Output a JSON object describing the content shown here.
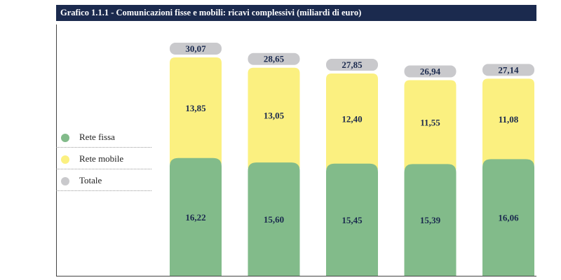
{
  "header": {
    "title": "Grafico 1.1.1 - Comunicazioni fisse e mobili: ricavi complessivi (miliardi di euro)"
  },
  "legend": [
    {
      "label": "Rete fissa",
      "color": "#82bb8a"
    },
    {
      "label": "Rete mobile",
      "color": "#fbf080"
    },
    {
      "label": "Totale",
      "color": "#c9c9cc"
    }
  ],
  "chart_data": {
    "type": "bar",
    "stacked": true,
    "title": "Grafico 1.1.1 - Comunicazioni fisse e mobili: ricavi complessivi (miliardi di euro)",
    "categories": [
      "",
      "",
      "",
      "",
      ""
    ],
    "series": [
      {
        "name": "Rete fissa",
        "color": "#82bb8a",
        "values": [
          16.22,
          15.6,
          15.45,
          15.39,
          16.06
        ],
        "labels": [
          "16,22",
          "15,60",
          "15,45",
          "15,39",
          "16,06"
        ]
      },
      {
        "name": "Rete mobile",
        "color": "#fbf080",
        "values": [
          13.85,
          13.05,
          12.4,
          11.55,
          11.08
        ],
        "labels": [
          "13,85",
          "13,05",
          "12,40",
          "11,55",
          "11,08"
        ]
      }
    ],
    "totals": {
      "name": "Totale",
      "color": "#c9c9cc",
      "values": [
        30.07,
        28.65,
        27.85,
        26.94,
        27.14
      ],
      "labels": [
        "30,07",
        "28,65",
        "27,85",
        "26,94",
        "27,14"
      ]
    },
    "ylim": [
      0,
      30.07
    ],
    "grid": false,
    "legend_position": "left"
  }
}
